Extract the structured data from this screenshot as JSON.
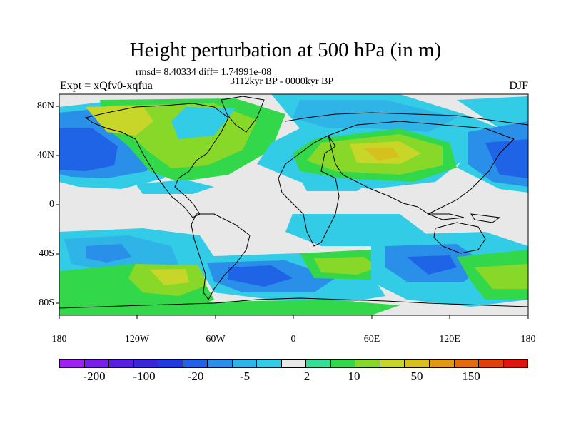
{
  "title": "Height perturbation at 500 hPa (in m)",
  "stats_line": "rmsd= 8.40334 diff= 1.74991e-08",
  "period_line": "3112kyr BP - 0000kyr BP",
  "expt_label": "Expt = xQfv0-xqfua",
  "season_label": "DJF",
  "lat_ticks": [
    "80N",
    "40N",
    "0",
    "40S",
    "80S"
  ],
  "lon_ticks": [
    "180",
    "120W",
    "60W",
    "0",
    "60E",
    "120E",
    "180"
  ],
  "colorbar": {
    "colors": [
      "#a020f0",
      "#7a1de8",
      "#5a1ee0",
      "#3a24d8",
      "#1f3ae0",
      "#1f64e6",
      "#2a8fe8",
      "#2fb4e8",
      "#33cce6",
      "#e8e8e8",
      "#33dd9a",
      "#33d84a",
      "#88d82a",
      "#c8d62a",
      "#d6c01e",
      "#e09a12",
      "#e06c0c",
      "#e0400a",
      "#e0140c"
    ],
    "labels": [
      "-200",
      "-100",
      "-20",
      "-5",
      "2",
      "10",
      "50",
      "150"
    ]
  },
  "map_colors": {
    "ocean_bg": "#e8e8e8",
    "coast": "#000000"
  }
}
